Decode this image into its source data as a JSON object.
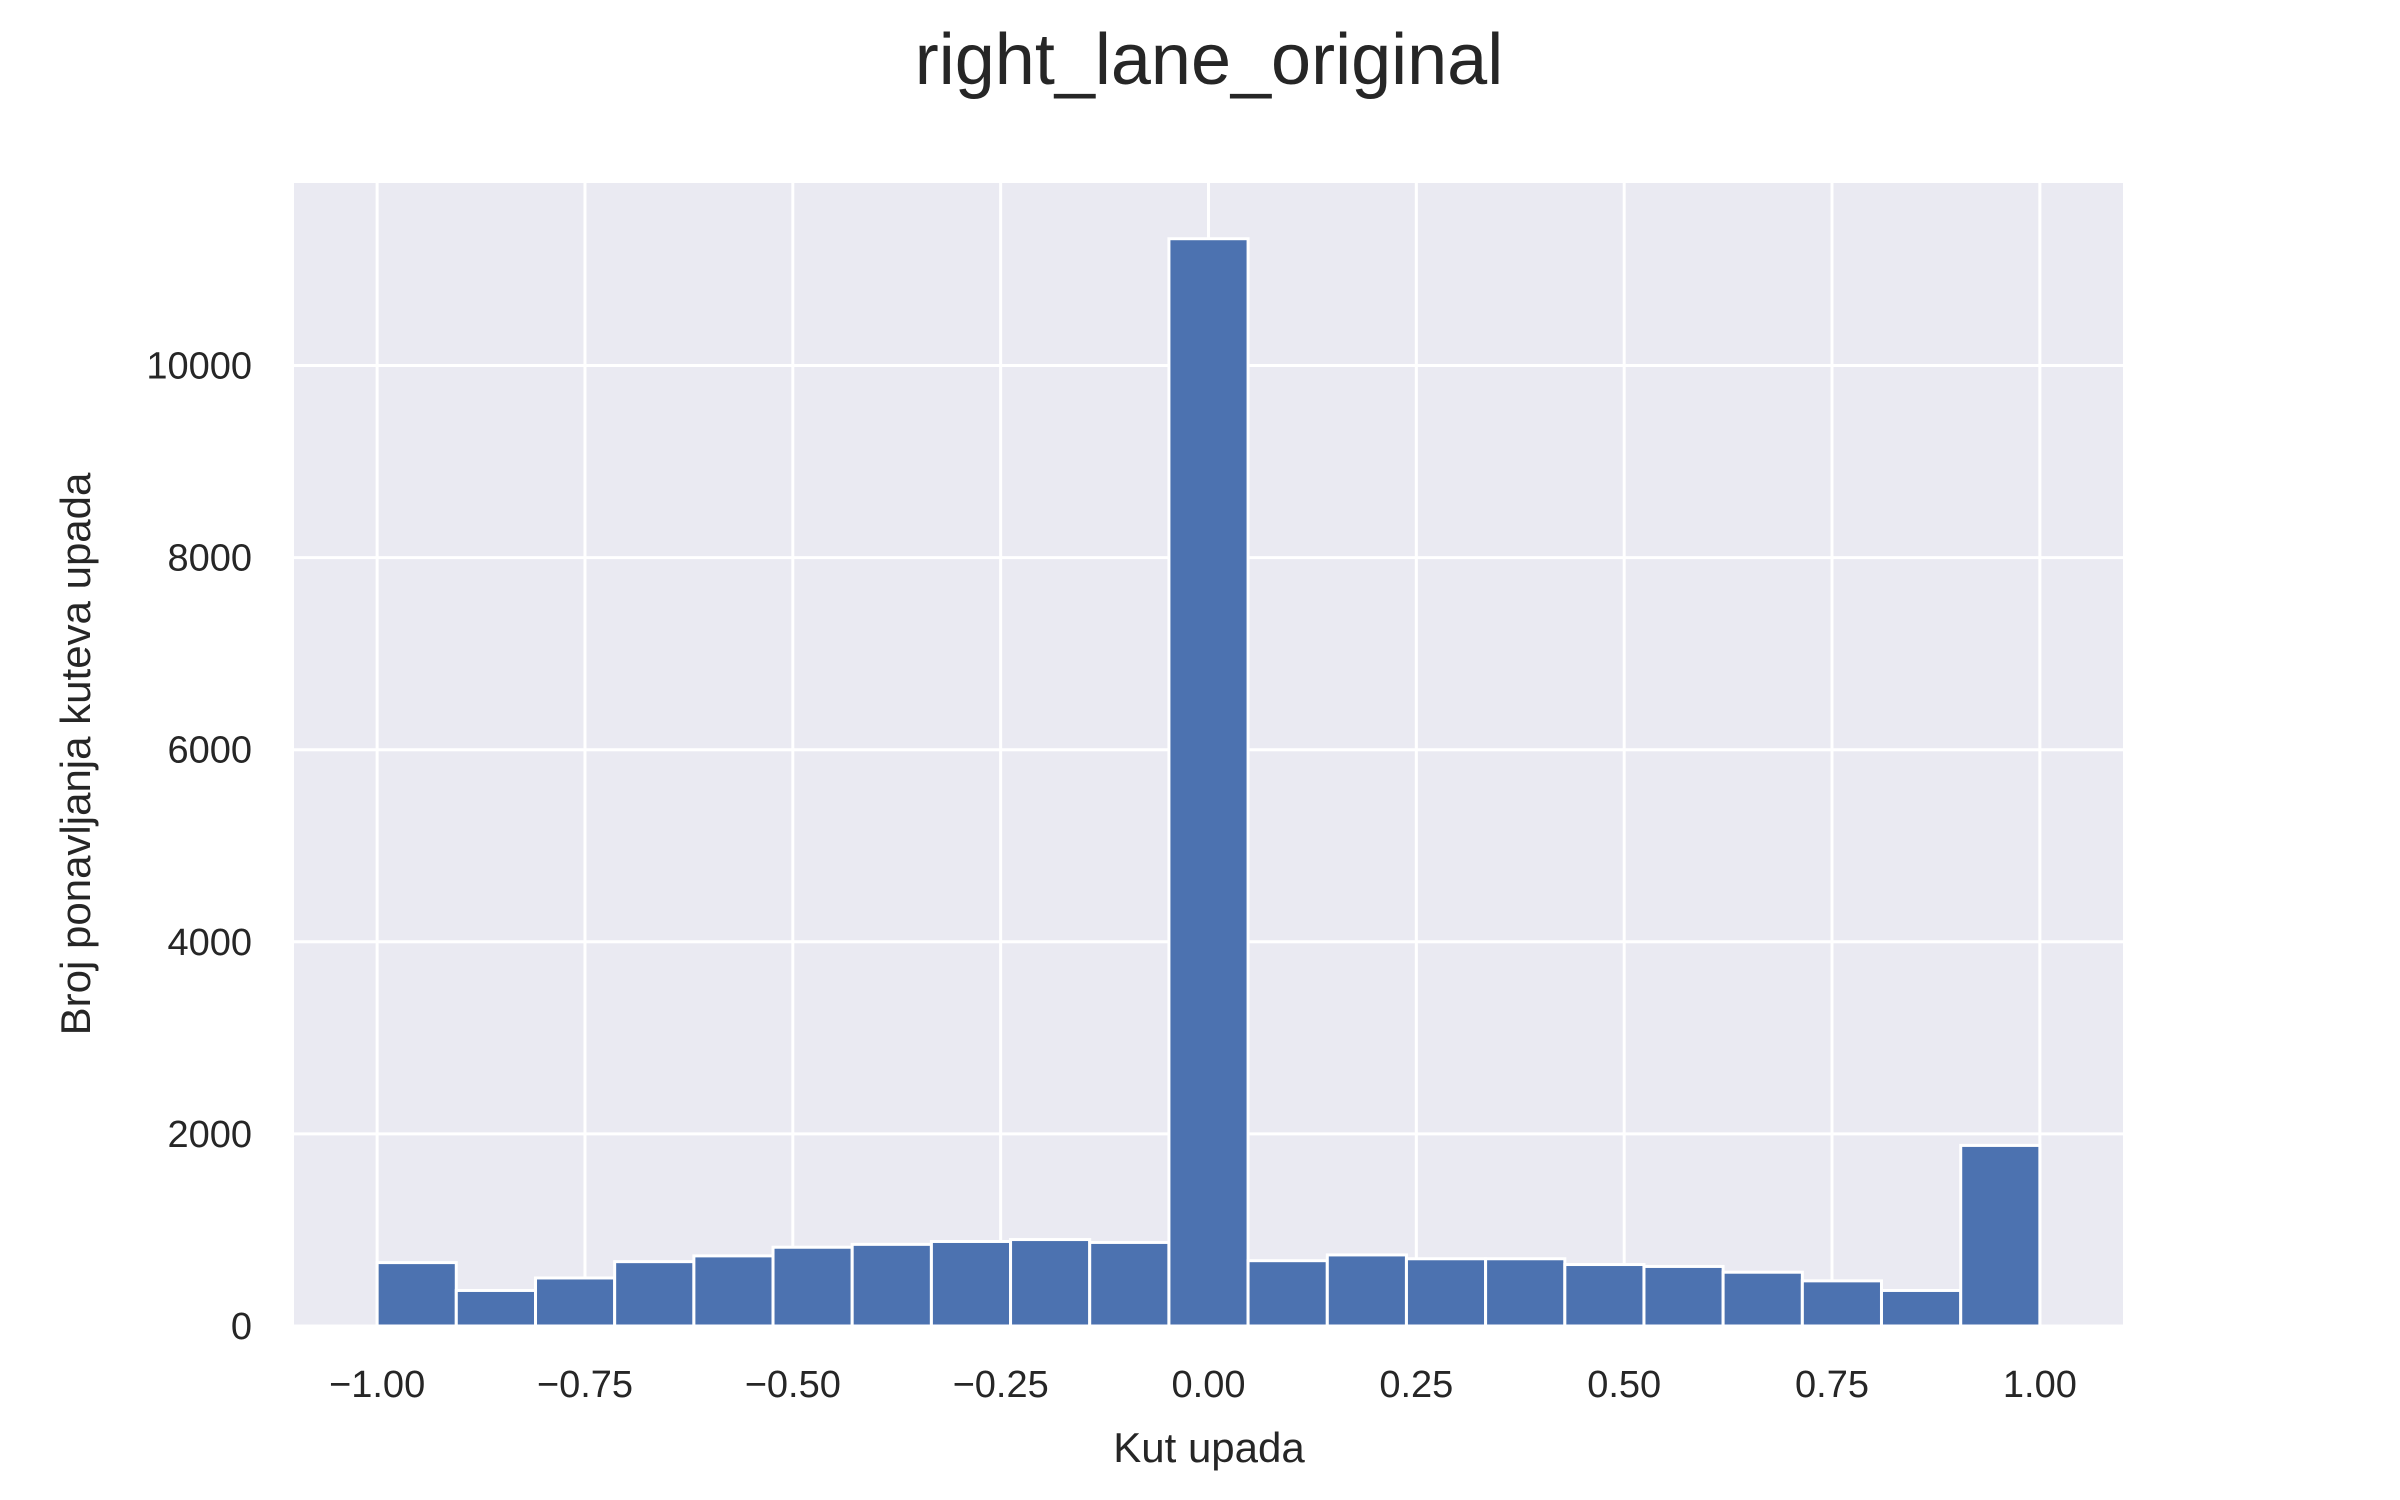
{
  "chart_data": {
    "type": "bar",
    "title": "right_lane_original",
    "xlabel": "Kut upada",
    "ylabel": "Broj ponavljanja kuteva upada",
    "xlim": [
      -1.1,
      1.1
    ],
    "ylim": [
      0,
      11900
    ],
    "grid": true,
    "bin_edges": [
      -1.0,
      -0.9048,
      -0.8095,
      -0.7143,
      -0.619,
      -0.5238,
      -0.4286,
      -0.3333,
      -0.2381,
      -0.1429,
      -0.0476,
      0.0476,
      0.1429,
      0.2381,
      0.3333,
      0.4286,
      0.5238,
      0.619,
      0.7143,
      0.8095,
      0.9048,
      1.0
    ],
    "values": [
      660,
      370,
      500,
      670,
      730,
      820,
      850,
      880,
      900,
      870,
      11320,
      680,
      740,
      700,
      700,
      640,
      620,
      560,
      470,
      370,
      1880
    ],
    "x_ticks": [
      {
        "value": -1.0,
        "label": "−1.00"
      },
      {
        "value": -0.75,
        "label": "−0.75"
      },
      {
        "value": -0.5,
        "label": "−0.50"
      },
      {
        "value": -0.25,
        "label": "−0.25"
      },
      {
        "value": 0.0,
        "label": "0.00"
      },
      {
        "value": 0.25,
        "label": "0.25"
      },
      {
        "value": 0.5,
        "label": "0.50"
      },
      {
        "value": 0.75,
        "label": "0.75"
      },
      {
        "value": 1.0,
        "label": "1.00"
      }
    ],
    "y_ticks": [
      {
        "value": 0,
        "label": "0"
      },
      {
        "value": 2000,
        "label": "2000"
      },
      {
        "value": 4000,
        "label": "4000"
      },
      {
        "value": 6000,
        "label": "6000"
      },
      {
        "value": 8000,
        "label": "8000"
      },
      {
        "value": 10000,
        "label": "10000"
      }
    ],
    "colors": {
      "bar": "#4c72b0",
      "plot_background": "#eaeaf2",
      "grid": "#ffffff",
      "text": "#262626"
    }
  }
}
